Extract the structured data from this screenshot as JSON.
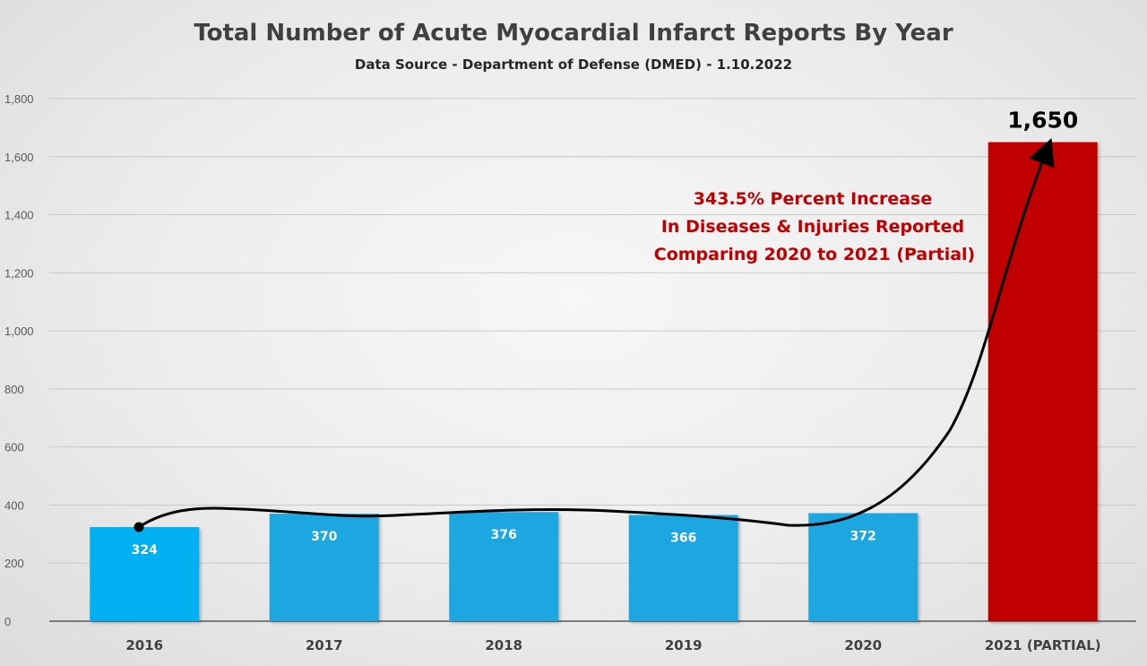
{
  "chart_data": {
    "type": "bar",
    "title": "Total Number of Acute Myocardial Infarct Reports By Year",
    "subtitle": "Data Source - Department of Defense (DMED) - 1.10.2022",
    "categories": [
      "2016",
      "2017",
      "2018",
      "2019",
      "2020",
      "2021 (PARTIAL)"
    ],
    "values": [
      324,
      370,
      376,
      366,
      372,
      1650
    ],
    "data_labels": [
      "324",
      "370",
      "376",
      "366",
      "372",
      "1,650"
    ],
    "ylim": [
      0,
      1800
    ],
    "yticks": [
      0,
      200,
      400,
      600,
      800,
      1000,
      1200,
      1400,
      1600,
      1800
    ],
    "ytick_labels": [
      "0",
      "200",
      "400",
      "600",
      "800",
      "1,000",
      "1,200",
      "1,400",
      "1,600",
      "1,800"
    ],
    "xlabel": "",
    "ylabel": "",
    "grid": true,
    "bar_colors": [
      "#00b0f0",
      "#1aa7e0",
      "#1aa7e0",
      "#1aa7e0",
      "#1aa7e0",
      "#c00000"
    ],
    "annotation": {
      "lines": [
        "343.5% Percent Increase",
        "In Diseases & Injuries Reported",
        "Comparing 2020 to 2021 (Partial)"
      ],
      "color": "#c00000"
    },
    "trend_arrow": {
      "from_category": "2016",
      "to_category": "2021 (PARTIAL)",
      "color": "#000000"
    }
  }
}
